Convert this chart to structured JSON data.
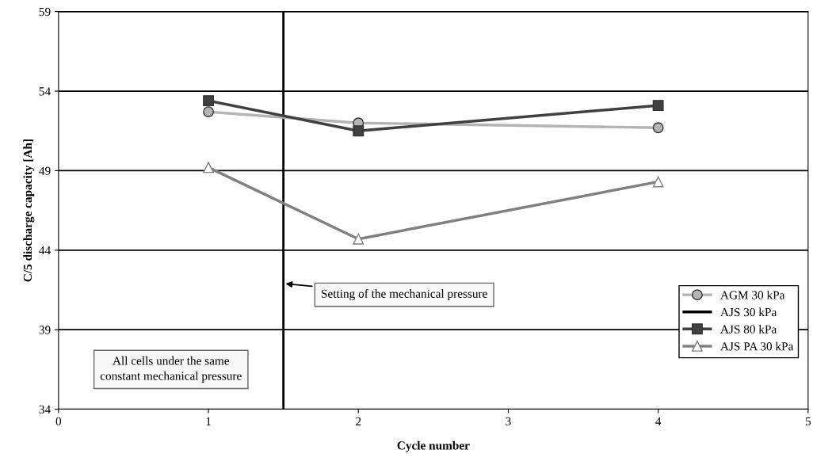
{
  "chart_data": {
    "type": "line",
    "xlabel": "Cycle number",
    "ylabel": "C/5 discharge capacity [Ah]",
    "x": [
      1,
      2,
      4
    ],
    "series": [
      {
        "name": "AGM 30 kPa",
        "color": "#b4b4b4",
        "marker": "circle",
        "values": [
          52.7,
          52.0,
          51.7
        ]
      },
      {
        "name": "AJS 30 kPa",
        "color": "#000000",
        "marker": "none",
        "values": [
          null,
          null,
          null
        ]
      },
      {
        "name": "AJS 80 kPa",
        "color": "#404040",
        "marker": "square",
        "values": [
          53.4,
          51.5,
          53.1
        ]
      },
      {
        "name": "AJS PA 30 kPa",
        "color": "#808080",
        "marker": "triangle",
        "values": [
          49.2,
          44.7,
          48.3
        ]
      }
    ],
    "xlim": [
      0,
      5
    ],
    "xticks": [
      0,
      1,
      2,
      3,
      4,
      5
    ],
    "ylim": [
      34,
      59
    ],
    "yticks": [
      34,
      39,
      44,
      49,
      54,
      59
    ],
    "grid": "y",
    "legend": "right",
    "ref_lines": [
      {
        "axis": "x",
        "value": 1.5,
        "color": "#000000"
      }
    ],
    "annotations": [
      {
        "text": "Setting of the mechanical pressure",
        "x": 1.5,
        "y": 41.9
      },
      "All cells under the same\nconstant mechanical pressure"
    ]
  }
}
